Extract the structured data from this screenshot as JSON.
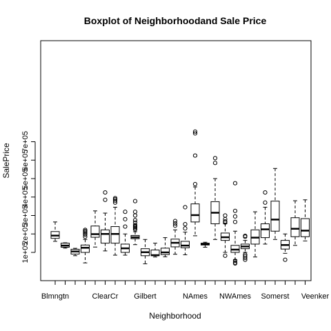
{
  "chart_data": {
    "type": "box",
    "title": "Boxplot of Neighborhoodand Sale Price",
    "xlabel": "Neighborhood",
    "ylabel": "SalePrice",
    "ylim": [
      0,
      770000
    ],
    "y_ticks": [
      100000,
      200000,
      300000,
      400000,
      500000,
      600000,
      700000
    ],
    "y_tick_labels": [
      "1e+05",
      "2e+05",
      "3e+05",
      "4e+05",
      "5e+05",
      "6e+05",
      "7e+05"
    ],
    "x_tick_labels": [
      {
        "index": 0,
        "label": "Blmngtn"
      },
      {
        "index": 5,
        "label": "ClearCr"
      },
      {
        "index": 9,
        "label": "Gilbert"
      },
      {
        "index": 14,
        "label": "NAmes"
      },
      {
        "index": 18,
        "label": "NWAmes"
      },
      {
        "index": 22,
        "label": "Somerst"
      },
      {
        "index": 26,
        "label": "Veenker"
      }
    ],
    "boxes": [
      {
        "lower_whisker": 160000,
        "q1": 176000,
        "median": 191000,
        "q3": 213000,
        "upper_whisker": 265000,
        "outliers": []
      },
      {
        "lower_whisker": 123000,
        "q1": 128000,
        "median": 137000,
        "q3": 150000,
        "upper_whisker": 152000,
        "outliers": []
      },
      {
        "lower_whisker": 82000,
        "q1": 91000,
        "median": 105000,
        "q3": 117000,
        "upper_whisker": 122000,
        "outliers": []
      },
      {
        "lower_whisker": 43000,
        "q1": 100000,
        "median": 125000,
        "q3": 140000,
        "upper_whisker": 170000,
        "outliers": [
          185000,
          196000,
          203000,
          210000,
          216000,
          222000
        ]
      },
      {
        "lower_whisker": 129000,
        "q1": 182000,
        "median": 199000,
        "q3": 243000,
        "upper_whisker": 325000,
        "outliers": []
      },
      {
        "lower_whisker": 108000,
        "q1": 150000,
        "median": 200000,
        "q3": 222000,
        "upper_whisker": 313000,
        "outliers": [
          385000,
          425000
        ]
      },
      {
        "lower_whisker": 85000,
        "q1": 150000,
        "median": 200000,
        "q3": 240000,
        "upper_whisker": 345000,
        "outliers": [
          370000,
          380000,
          388000,
          394000
        ]
      },
      {
        "lower_whisker": 85000,
        "q1": 100000,
        "median": 122000,
        "q3": 145000,
        "upper_whisker": 200000,
        "outliers": [
          240000,
          280000,
          320000
        ]
      },
      {
        "lower_whisker": 142000,
        "q1": 174000,
        "median": 182000,
        "q3": 192000,
        "upper_whisker": 212000,
        "outliers": [
          225000,
          232000,
          238000,
          242000,
          248000,
          262000,
          275000,
          300000,
          320000,
          378000
        ]
      },
      {
        "lower_whisker": 38000,
        "q1": 82000,
        "median": 101000,
        "q3": 120000,
        "upper_whisker": 170000,
        "outliers": []
      },
      {
        "lower_whisker": 75000,
        "q1": 82000,
        "median": 85000,
        "q3": 113000,
        "upper_whisker": 150000,
        "outliers": []
      },
      {
        "lower_whisker": 76000,
        "q1": 88000,
        "median": 100000,
        "q3": 123000,
        "upper_whisker": 180000,
        "outliers": []
      },
      {
        "lower_whisker": 90000,
        "q1": 130000,
        "median": 152000,
        "q3": 172000,
        "upper_whisker": 222000,
        "outliers": [
          245000,
          257000,
          270000
        ]
      },
      {
        "lower_whisker": 87000,
        "q1": 125000,
        "median": 137000,
        "q3": 160000,
        "upper_whisker": 210000,
        "outliers": [
          230000,
          253000,
          345000
        ]
      },
      {
        "lower_whisker": 190000,
        "q1": 265000,
        "median": 302000,
        "q3": 363000,
        "upper_whisker": 455000,
        "outliers": [
          470000,
          625000,
          745000,
          755000
        ]
      },
      {
        "lower_whisker": 128000,
        "q1": 140000,
        "median": 145000,
        "q3": 150000,
        "upper_whisker": 155000,
        "outliers": []
      },
      {
        "lower_whisker": 170000,
        "q1": 255000,
        "median": 315000,
        "q3": 375000,
        "upper_whisker": 500000,
        "outliers": [
          585000,
          611000
        ]
      },
      {
        "lower_whisker": 100000,
        "q1": 165000,
        "median": 182000,
        "q3": 205000,
        "upper_whisker": 255000,
        "outliers": [
          82000,
          262000,
          268000,
          280000,
          300000
        ]
      },
      {
        "lower_whisker": 60000,
        "q1": 100000,
        "median": 115000,
        "q3": 138000,
        "upper_whisker": 215000,
        "outliers": [
          40000,
          45000,
          55000,
          265000,
          295000,
          325000,
          475000
        ]
      },
      {
        "lower_whisker": 100000,
        "q1": 120000,
        "median": 132000,
        "q3": 145000,
        "upper_whisker": 165000,
        "outliers": [
          60000,
          70000,
          80000,
          88000,
          185000,
          190000
        ]
      },
      {
        "lower_whisker": 75000,
        "q1": 145000,
        "median": 180000,
        "q3": 222000,
        "upper_whisker": 320000,
        "outliers": []
      },
      {
        "lower_whisker": 145000,
        "q1": 180000,
        "median": 225000,
        "q3": 255000,
        "upper_whisker": 345000,
        "outliers": [
          370000,
          425000
        ]
      },
      {
        "lower_whisker": 170000,
        "q1": 215000,
        "median": 278000,
        "q3": 378000,
        "upper_whisker": 555000,
        "outliers": []
      },
      {
        "lower_whisker": 95000,
        "q1": 118000,
        "median": 140000,
        "q3": 165000,
        "upper_whisker": 200000,
        "outliers": [
          60000
        ]
      },
      {
        "lower_whisker": 138000,
        "q1": 185000,
        "median": 228000,
        "q3": 288000,
        "upper_whisker": 380000,
        "outliers": []
      },
      {
        "lower_whisker": 162000,
        "q1": 185000,
        "median": 218000,
        "q3": 283000,
        "upper_whisker": 385000,
        "outliers": []
      }
    ]
  }
}
